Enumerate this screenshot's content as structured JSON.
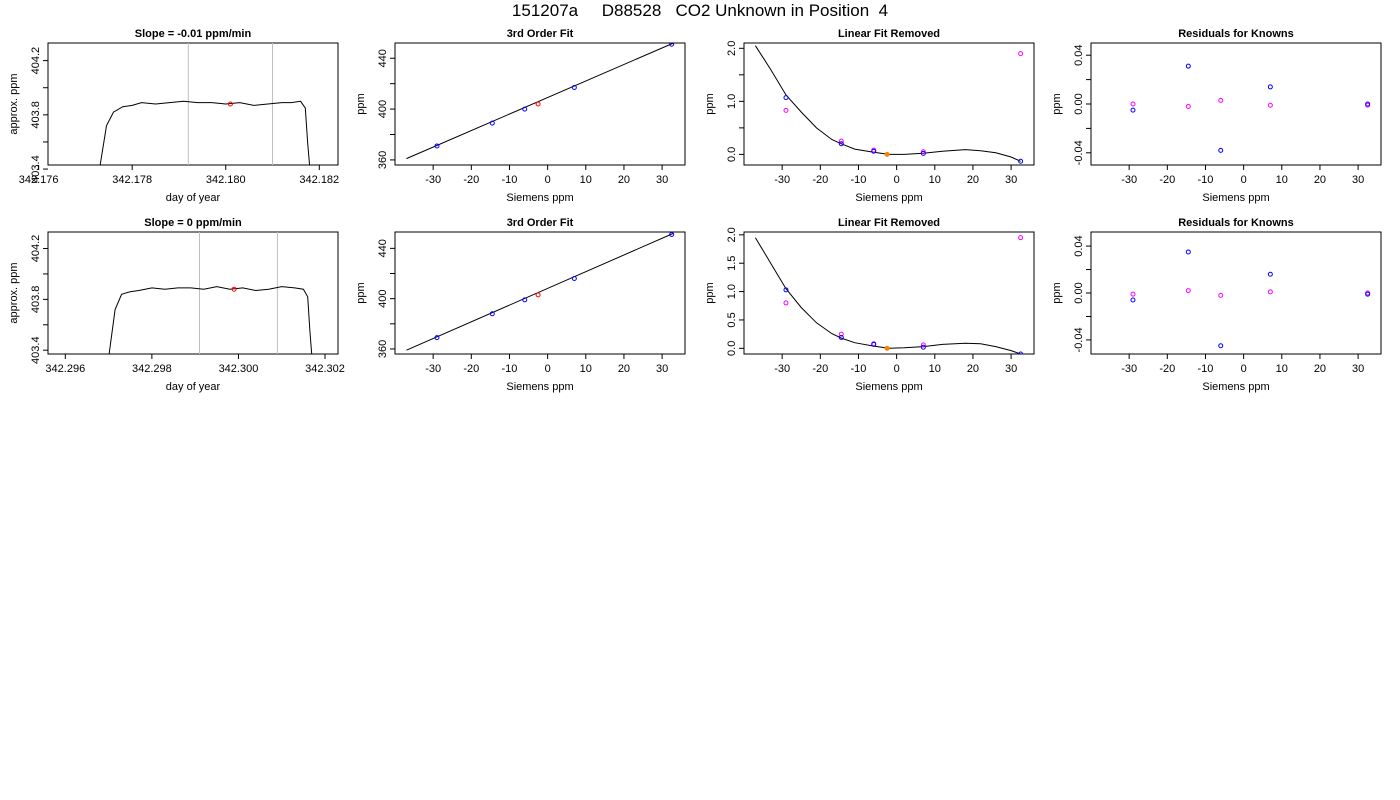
{
  "header": {
    "run_id": "151207a",
    "tank_id": "D88528",
    "description": "CO2 Unknown in Position  4"
  },
  "colors": {
    "line": "#000000",
    "gridline": "#bebebe",
    "known_point": "#0000ff",
    "unknown_point": "#ff0000",
    "residual_alt": "#ff00ff",
    "unknown_fit_point": "#ff8000"
  },
  "chart_data": [
    {
      "row": 1,
      "type": "line",
      "title": "Slope =  -0.01  ppm/min",
      "xlabel": "day of year",
      "ylabel": "approx. ppm",
      "xlim": [
        342.1762,
        342.1824
      ],
      "ylim": [
        403.43,
        404.33
      ],
      "xticks": [
        "342.176",
        "342.178",
        "342.180",
        "342.182"
      ],
      "yticks": [
        "403.4",
        "403.8",
        "404.2"
      ],
      "yticks_minor": [
        403.6,
        404.0
      ],
      "vlines": [
        342.1792,
        342.181
      ],
      "marker": {
        "x": 342.1801,
        "y": 403.88
      },
      "series": {
        "x": [
          342.1773,
          342.17745,
          342.1776,
          342.1778,
          342.178,
          342.1782,
          342.1785,
          342.1788,
          342.1791,
          342.1794,
          342.1797,
          342.18,
          342.1803,
          342.1806,
          342.1809,
          342.1812,
          342.1814,
          342.1816,
          342.1817,
          342.18175,
          342.1818
        ],
        "y": [
          403.4,
          403.72,
          403.82,
          403.86,
          403.87,
          403.89,
          403.88,
          403.89,
          403.9,
          403.89,
          403.89,
          403.88,
          403.89,
          403.87,
          403.88,
          403.89,
          403.89,
          403.9,
          403.85,
          403.6,
          403.4
        ]
      }
    },
    {
      "row": 1,
      "type": "scatter",
      "title": "3rd Order Fit",
      "xlabel": "Siemens ppm",
      "ylabel": "ppm",
      "xlim": [
        -40,
        36
      ],
      "ylim": [
        356,
        452
      ],
      "xticks": [
        -30,
        -20,
        -10,
        0,
        10,
        20,
        30
      ],
      "yticks": [
        "360",
        "400",
        "440"
      ],
      "yticks_minor": [
        380,
        420
      ],
      "line": {
        "x": [
          -37,
          33
        ],
        "y": [
          361,
          452
        ]
      },
      "points_known": {
        "x": [
          -29,
          -14.5,
          -6,
          7,
          32.5
        ],
        "y": [
          371,
          389,
          400,
          417,
          451
        ]
      },
      "points_unknown": {
        "x": [
          -2.5
        ],
        "y": [
          404
        ]
      }
    },
    {
      "row": 1,
      "type": "scatter",
      "title": "Linear Fit Removed",
      "xlabel": "Siemens ppm",
      "ylabel": "ppm",
      "xlim": [
        -40,
        36
      ],
      "ylim": [
        -0.2,
        2.1
      ],
      "xticks": [
        -30,
        -20,
        -10,
        0,
        10,
        20,
        30
      ],
      "yticks": [
        "0.0",
        "1.0",
        "2.0"
      ],
      "yticks_minor": [
        0.5,
        1.5
      ],
      "curve": {
        "x": [
          -37,
          -33,
          -29,
          -25,
          -21,
          -17,
          -14.5,
          -11,
          -6,
          -2,
          2,
          7,
          12,
          18,
          22,
          26,
          30,
          32.5
        ],
        "y": [
          2.05,
          1.6,
          1.12,
          0.8,
          0.5,
          0.28,
          0.2,
          0.1,
          0.04,
          0.0,
          0.0,
          0.02,
          0.06,
          0.09,
          0.07,
          0.03,
          -0.05,
          -0.13
        ]
      },
      "points_known": {
        "x": [
          -29,
          -14.5,
          -6,
          7,
          32.5
        ],
        "y": [
          1.07,
          0.2,
          0.06,
          0.02,
          -0.13
        ]
      },
      "points_alt": {
        "x": [
          -29,
          -14.5,
          -6,
          7,
          32.5
        ],
        "y": [
          0.83,
          0.25,
          0.08,
          0.05,
          1.9
        ]
      },
      "points_unknown": {
        "x": [
          -2.5
        ],
        "y": [
          0.0
        ]
      }
    },
    {
      "row": 1,
      "type": "scatter",
      "title": "Residuals for Knowns",
      "xlabel": "Siemens ppm",
      "ylabel": "ppm",
      "xlim": [
        -40,
        36
      ],
      "ylim": [
        -0.05,
        0.05
      ],
      "xticks": [
        -30,
        -20,
        -10,
        0,
        10,
        20,
        30
      ],
      "yticks": [
        "-0.04",
        "0.00",
        "0.04"
      ],
      "yticks_minor": [
        -0.02,
        0.02
      ],
      "points_known": {
        "x": [
          -29,
          -14.5,
          -6,
          7,
          32.5
        ],
        "y": [
          -0.005,
          0.031,
          -0.038,
          0.014,
          0.0
        ]
      },
      "points_alt": {
        "x": [
          -29,
          -14.5,
          -6,
          7,
          32.5
        ],
        "y": [
          0.0,
          -0.002,
          0.003,
          -0.001,
          -0.001
        ]
      }
    },
    {
      "row": 2,
      "type": "line",
      "title": "Slope =  0  ppm/min",
      "xlabel": "day of year",
      "ylabel": "approx. ppm",
      "xlim": [
        342.2956,
        342.3023
      ],
      "ylim": [
        403.37,
        404.33
      ],
      "xticks": [
        "342.296",
        "342.298",
        "342.300",
        "342.302"
      ],
      "yticks": [
        "403.4",
        "403.8",
        "404.2"
      ],
      "yticks_minor": [
        403.6,
        404.0
      ],
      "vlines": [
        342.2991,
        342.3009
      ],
      "marker": {
        "x": 342.2999,
        "y": 403.88
      },
      "series": {
        "x": [
          342.297,
          342.29715,
          342.2973,
          342.2975,
          342.2977,
          342.298,
          342.2983,
          342.2986,
          342.2989,
          342.2992,
          342.2995,
          342.2998,
          342.3001,
          342.3004,
          342.3007,
          342.301,
          342.3013,
          342.3015,
          342.3016,
          342.30165,
          342.3017
        ],
        "y": [
          403.34,
          403.72,
          403.84,
          403.86,
          403.87,
          403.89,
          403.88,
          403.89,
          403.89,
          403.88,
          403.9,
          403.88,
          403.89,
          403.87,
          403.88,
          403.9,
          403.89,
          403.88,
          403.82,
          403.55,
          403.34
        ]
      }
    },
    {
      "row": 2,
      "type": "scatter",
      "title": "3rd Order Fit",
      "xlabel": "Siemens ppm",
      "ylabel": "ppm",
      "xlim": [
        -40,
        36
      ],
      "ylim": [
        356,
        453
      ],
      "xticks": [
        -30,
        -20,
        -10,
        0,
        10,
        20,
        30
      ],
      "yticks": [
        "360",
        "400",
        "440"
      ],
      "yticks_minor": [
        380,
        420
      ],
      "line": {
        "x": [
          -37,
          33
        ],
        "y": [
          359,
          452
        ]
      },
      "points_known": {
        "x": [
          -29,
          -14.5,
          -6,
          7,
          32.5
        ],
        "y": [
          369,
          388,
          399,
          416,
          451
        ]
      },
      "points_unknown": {
        "x": [
          -2.5
        ],
        "y": [
          403
        ]
      }
    },
    {
      "row": 2,
      "type": "scatter",
      "title": "Linear Fit Removed",
      "xlabel": "Siemens ppm",
      "ylabel": "ppm",
      "xlim": [
        -40,
        36
      ],
      "ylim": [
        -0.1,
        2.05
      ],
      "xticks": [
        -30,
        -20,
        -10,
        0,
        10,
        20,
        30
      ],
      "yticks": [
        "0.0",
        "0.5",
        "1.0",
        "1.5",
        "2.0"
      ],
      "yticks_minor": [],
      "curve": {
        "x": [
          -37,
          -33,
          -29,
          -25,
          -21,
          -17,
          -14.5,
          -11,
          -6,
          -2,
          2,
          7,
          12,
          18,
          22,
          26,
          30,
          32.5
        ],
        "y": [
          1.95,
          1.5,
          1.05,
          0.72,
          0.45,
          0.26,
          0.18,
          0.1,
          0.04,
          0.0,
          0.01,
          0.03,
          0.07,
          0.09,
          0.08,
          0.03,
          -0.04,
          -0.1
        ]
      },
      "points_known": {
        "x": [
          -29,
          -14.5,
          -6,
          7,
          32.5
        ],
        "y": [
          1.03,
          0.19,
          0.07,
          0.02,
          -0.1
        ]
      },
      "points_alt": {
        "x": [
          -29,
          -14.5,
          -6,
          7,
          32.5
        ],
        "y": [
          0.8,
          0.25,
          0.08,
          0.06,
          1.95
        ]
      },
      "points_unknown": {
        "x": [
          -2.5
        ],
        "y": [
          0.0
        ]
      }
    },
    {
      "row": 2,
      "type": "scatter",
      "title": "Residuals for Knowns",
      "xlabel": "Siemens ppm",
      "ylabel": "ppm",
      "xlim": [
        -40,
        36
      ],
      "ylim": [
        -0.052,
        0.052
      ],
      "xticks": [
        -30,
        -20,
        -10,
        0,
        10,
        20,
        30
      ],
      "yticks": [
        "-0.04",
        "0.00",
        "0.04"
      ],
      "yticks_minor": [
        -0.02,
        0.02
      ],
      "points_known": {
        "x": [
          -29,
          -14.5,
          -6,
          7,
          32.5
        ],
        "y": [
          -0.006,
          0.035,
          -0.045,
          0.016,
          -0.001
        ]
      },
      "points_alt": {
        "x": [
          -29,
          -14.5,
          -6,
          7,
          32.5
        ],
        "y": [
          -0.001,
          0.002,
          -0.002,
          0.001,
          0.0
        ]
      }
    }
  ]
}
